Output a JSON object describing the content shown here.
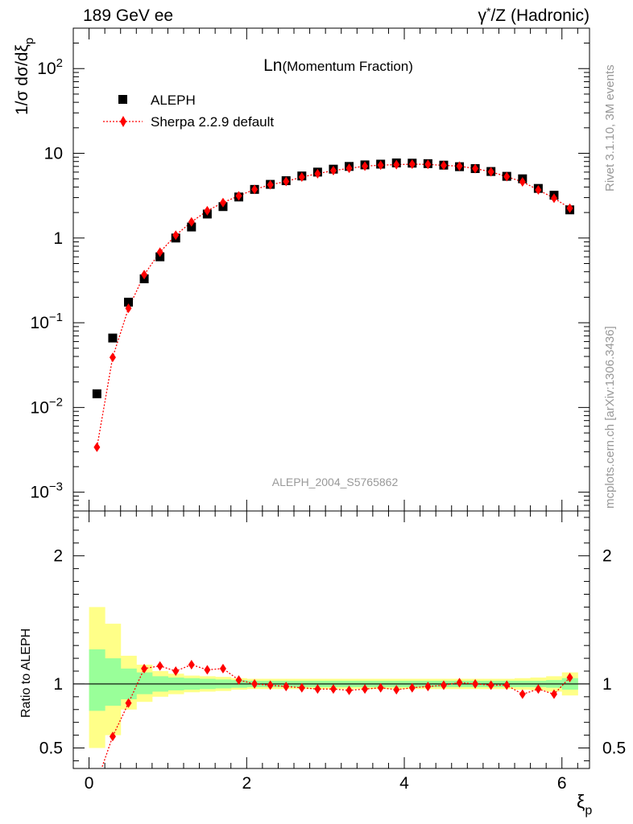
{
  "header": {
    "left": "189 GeV ee",
    "right_greek": "γ",
    "right_star": "*",
    "right_rest": "/Z (Hadronic)"
  },
  "plot_title": {
    "main": "Ln",
    "sub": "(Momentum Fraction)"
  },
  "ylabel_main": {
    "prefix": "1/σ dσ/dξ",
    "sub": "p"
  },
  "ylabel_ratio": "Ratio to ALEPH",
  "xlabel": {
    "main": "ξ",
    "sub": "p"
  },
  "side_text": {
    "rivet": "Rivet 3.1.10,  3M events",
    "mcplots": "mcplots.cern.ch [arXiv:1306.3436]"
  },
  "watermark": "ALEPH_2004_S5765862",
  "legend": {
    "data_label": "ALEPH",
    "mc_label": "Sherpa 2.2.9 default"
  },
  "colors": {
    "data": "#000000",
    "mc": "#ff0000",
    "band_inner": "#99ff99",
    "band_outer": "#ffff88"
  },
  "chart_data": {
    "type": "scatter",
    "xlim": [
      -0.2,
      6.35
    ],
    "ylim_main": [
      0.0006,
      300
    ],
    "yscale_main": "log",
    "ylim_ratio": [
      0.34,
      2.35
    ],
    "x_ticks": [
      {
        "v": 0,
        "t": "0"
      },
      {
        "v": 2,
        "t": "2"
      },
      {
        "v": 4,
        "t": "4"
      },
      {
        "v": 6,
        "t": "6"
      }
    ],
    "y_ticks_main": [
      {
        "base": "10",
        "exp": "2",
        "v": 100
      },
      {
        "base": "10",
        "exp": "",
        "v": 10
      },
      {
        "base": "1",
        "exp": "",
        "v": 1
      },
      {
        "base": "10",
        "exp": "−1",
        "v": 0.1
      },
      {
        "base": "10",
        "exp": "−2",
        "v": 0.01
      },
      {
        "base": "10",
        "exp": "−3",
        "v": 0.001
      }
    ],
    "y_ticks_ratio": [
      {
        "v": 0.5,
        "t": "0.5"
      },
      {
        "v": 1,
        "t": "1"
      },
      {
        "v": 2,
        "t": "2"
      }
    ],
    "x": [
      0.1,
      0.3,
      0.5,
      0.7,
      0.9,
      1.1,
      1.3,
      1.5,
      1.7,
      1.9,
      2.1,
      2.3,
      2.5,
      2.7,
      2.9,
      3.1,
      3.3,
      3.5,
      3.7,
      3.9,
      4.1,
      4.3,
      4.5,
      4.7,
      4.9,
      5.1,
      5.3,
      5.5,
      5.7,
      5.9,
      6.1
    ],
    "series": [
      {
        "name": "ALEPH",
        "values": [
          0.0145,
          0.066,
          0.175,
          0.33,
          0.6,
          1.0,
          1.35,
          1.92,
          2.35,
          3.05,
          3.75,
          4.3,
          4.75,
          5.4,
          6.0,
          6.5,
          7.0,
          7.3,
          7.45,
          7.7,
          7.65,
          7.55,
          7.25,
          6.95,
          6.6,
          6.1,
          5.35,
          5.0,
          3.85,
          3.2,
          2.15
        ]
      },
      {
        "name": "Sherpa 2.2.9 default",
        "values": [
          0.0034,
          0.039,
          0.148,
          0.37,
          0.68,
          1.08,
          1.55,
          2.1,
          2.62,
          3.15,
          3.75,
          4.25,
          4.65,
          5.25,
          5.75,
          6.25,
          6.65,
          7.05,
          7.25,
          7.35,
          7.45,
          7.4,
          7.2,
          7.05,
          6.6,
          6.05,
          5.3,
          4.6,
          3.7,
          2.95,
          2.25
        ]
      }
    ],
    "ratio": [
      0.235,
      0.59,
      0.85,
      1.12,
      1.14,
      1.1,
      1.15,
      1.11,
      1.12,
      1.03,
      1.0,
      0.99,
      0.98,
      0.97,
      0.96,
      0.96,
      0.95,
      0.96,
      0.97,
      0.955,
      0.97,
      0.98,
      0.99,
      1.01,
      1.0,
      0.99,
      0.99,
      0.92,
      0.96,
      0.92,
      1.05
    ],
    "band_edges": [
      0.0,
      0.2,
      0.4,
      0.6,
      0.8,
      1.0,
      1.2,
      1.4,
      1.6,
      1.8,
      2.0,
      2.2,
      2.4,
      2.6,
      2.8,
      3.0,
      3.2,
      3.4,
      3.6,
      3.8,
      4.0,
      4.2,
      4.4,
      4.6,
      4.8,
      5.0,
      5.2,
      5.4,
      5.6,
      5.8,
      6.0,
      6.2
    ],
    "band_inner": [
      [
        0.79,
        1.27
      ],
      [
        0.83,
        1.2
      ],
      [
        0.88,
        1.12
      ],
      [
        0.92,
        1.09
      ],
      [
        0.94,
        1.06
      ],
      [
        0.95,
        1.05
      ],
      [
        0.955,
        1.045
      ],
      [
        0.96,
        1.04
      ],
      [
        0.965,
        1.035
      ],
      [
        0.97,
        1.03
      ],
      [
        0.975,
        1.025
      ],
      [
        0.975,
        1.025
      ],
      [
        0.975,
        1.025
      ],
      [
        0.975,
        1.025
      ],
      [
        0.975,
        1.025
      ],
      [
        0.975,
        1.025
      ],
      [
        0.975,
        1.025
      ],
      [
        0.975,
        1.025
      ],
      [
        0.975,
        1.025
      ],
      [
        0.975,
        1.025
      ],
      [
        0.975,
        1.025
      ],
      [
        0.975,
        1.025
      ],
      [
        0.975,
        1.025
      ],
      [
        0.975,
        1.025
      ],
      [
        0.975,
        1.025
      ],
      [
        0.975,
        1.025
      ],
      [
        0.975,
        1.025
      ],
      [
        0.975,
        1.025
      ],
      [
        0.975,
        1.025
      ],
      [
        0.97,
        1.03
      ],
      [
        0.955,
        1.045
      ]
    ],
    "band_outer": [
      [
        0.5,
        1.6
      ],
      [
        0.6,
        1.47
      ],
      [
        0.8,
        1.22
      ],
      [
        0.86,
        1.15
      ],
      [
        0.9,
        1.1
      ],
      [
        0.92,
        1.08
      ],
      [
        0.935,
        1.065
      ],
      [
        0.94,
        1.06
      ],
      [
        0.945,
        1.055
      ],
      [
        0.955,
        1.045
      ],
      [
        0.96,
        1.04
      ],
      [
        0.96,
        1.04
      ],
      [
        0.96,
        1.04
      ],
      [
        0.96,
        1.04
      ],
      [
        0.96,
        1.04
      ],
      [
        0.96,
        1.04
      ],
      [
        0.96,
        1.04
      ],
      [
        0.96,
        1.04
      ],
      [
        0.96,
        1.04
      ],
      [
        0.96,
        1.04
      ],
      [
        0.96,
        1.04
      ],
      [
        0.96,
        1.04
      ],
      [
        0.96,
        1.04
      ],
      [
        0.96,
        1.04
      ],
      [
        0.96,
        1.04
      ],
      [
        0.96,
        1.04
      ],
      [
        0.96,
        1.04
      ],
      [
        0.955,
        1.045
      ],
      [
        0.95,
        1.05
      ],
      [
        0.94,
        1.06
      ],
      [
        0.91,
        1.09
      ]
    ]
  }
}
